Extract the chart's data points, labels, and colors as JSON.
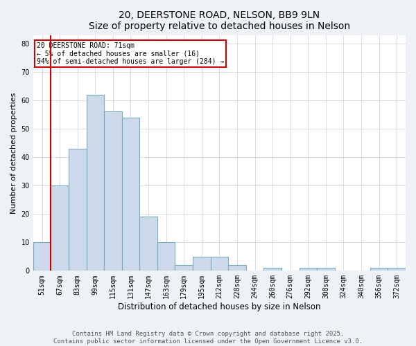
{
  "title": "20, DEERSTONE ROAD, NELSON, BB9 9LN",
  "subtitle": "Size of property relative to detached houses in Nelson",
  "xlabel": "Distribution of detached houses by size in Nelson",
  "ylabel": "Number of detached properties",
  "categories": [
    "51sqm",
    "67sqm",
    "83sqm",
    "99sqm",
    "115sqm",
    "131sqm",
    "147sqm",
    "163sqm",
    "179sqm",
    "195sqm",
    "212sqm",
    "228sqm",
    "244sqm",
    "260sqm",
    "276sqm",
    "292sqm",
    "308sqm",
    "324sqm",
    "340sqm",
    "356sqm",
    "372sqm"
  ],
  "values": [
    10,
    30,
    43,
    62,
    56,
    54,
    19,
    10,
    2,
    5,
    5,
    2,
    0,
    1,
    0,
    1,
    1,
    0,
    0,
    1,
    1
  ],
  "bar_color": "#ccdaeb",
  "bar_edge_color": "#7aaabf",
  "annotation_box_text": "20 DEERSTONE ROAD: 71sqm\n← 5% of detached houses are smaller (16)\n94% of semi-detached houses are larger (284) →",
  "annotation_fontsize": 7,
  "annotation_box_edge_color": "#cc0000",
  "vline_bar_index": 1,
  "ylim": [
    0,
    83
  ],
  "yticks": [
    0,
    10,
    20,
    30,
    40,
    50,
    60,
    70,
    80
  ],
  "title_fontsize": 10,
  "xlabel_fontsize": 8.5,
  "ylabel_fontsize": 8,
  "tick_fontsize": 7,
  "footer_text": "Contains HM Land Registry data © Crown copyright and database right 2025.\nContains public sector information licensed under the Open Government Licence v3.0.",
  "footer_fontsize": 6.5,
  "bg_color": "#eef2f7",
  "plot_bg_color": "#ffffff",
  "grid_color": "#c5d0dd"
}
